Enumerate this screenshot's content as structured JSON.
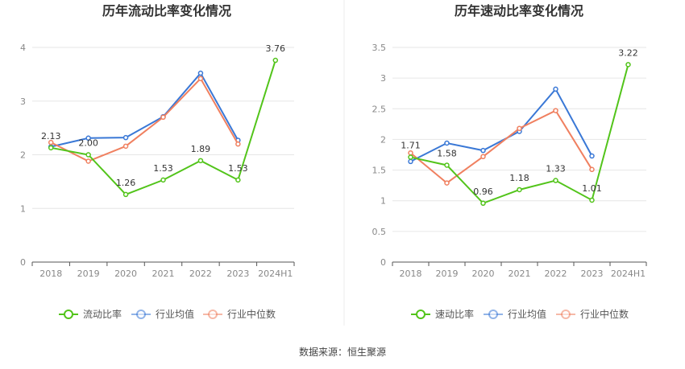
{
  "source": "数据来源：恒生聚源",
  "chart_data": [
    {
      "type": "line",
      "title": "历年流动比率变化情况",
      "categories": [
        "2018",
        "2019",
        "2020",
        "2021",
        "2022",
        "2023",
        "2024H1"
      ],
      "ylim": [
        0,
        4
      ],
      "yticks": [
        "0",
        "1",
        "2",
        "3",
        "4"
      ],
      "grid": true,
      "legend": "bottom",
      "series": [
        {
          "name": "流动比率",
          "color": "#52c41a",
          "values": [
            2.13,
            2.0,
            1.26,
            1.53,
            1.89,
            1.53,
            3.76
          ],
          "labels": [
            "2.13",
            "2.00",
            "1.26",
            "1.53",
            "1.89",
            "1.53",
            "3.76"
          ]
        },
        {
          "name": "行业均值",
          "color": "#3a78d6",
          "values": [
            2.15,
            2.31,
            2.32,
            2.71,
            3.52,
            2.27,
            null
          ]
        },
        {
          "name": "行业中位数",
          "color": "#f08060",
          "values": [
            2.23,
            1.88,
            2.16,
            2.7,
            3.42,
            2.2,
            null
          ]
        }
      ]
    },
    {
      "type": "line",
      "title": "历年速动比率变化情况",
      "categories": [
        "2018",
        "2019",
        "2020",
        "2021",
        "2022",
        "2023",
        "2024H1"
      ],
      "ylim": [
        0,
        3.5
      ],
      "yticks": [
        "0",
        "0.5",
        "1",
        "1.5",
        "2",
        "2.5",
        "3",
        "3.5"
      ],
      "grid": true,
      "legend": "bottom",
      "series": [
        {
          "name": "速动比率",
          "color": "#52c41a",
          "values": [
            1.71,
            1.58,
            0.96,
            1.18,
            1.33,
            1.01,
            3.22
          ],
          "labels": [
            "1.71",
            "1.58",
            "0.96",
            "1.18",
            "1.33",
            "1.01",
            "3.22"
          ]
        },
        {
          "name": "行业均值",
          "color": "#3a78d6",
          "values": [
            1.64,
            1.94,
            1.82,
            2.13,
            2.82,
            1.73,
            null
          ]
        },
        {
          "name": "行业中位数",
          "color": "#f08060",
          "values": [
            1.78,
            1.29,
            1.72,
            2.18,
            2.47,
            1.51,
            null
          ]
        }
      ]
    }
  ]
}
